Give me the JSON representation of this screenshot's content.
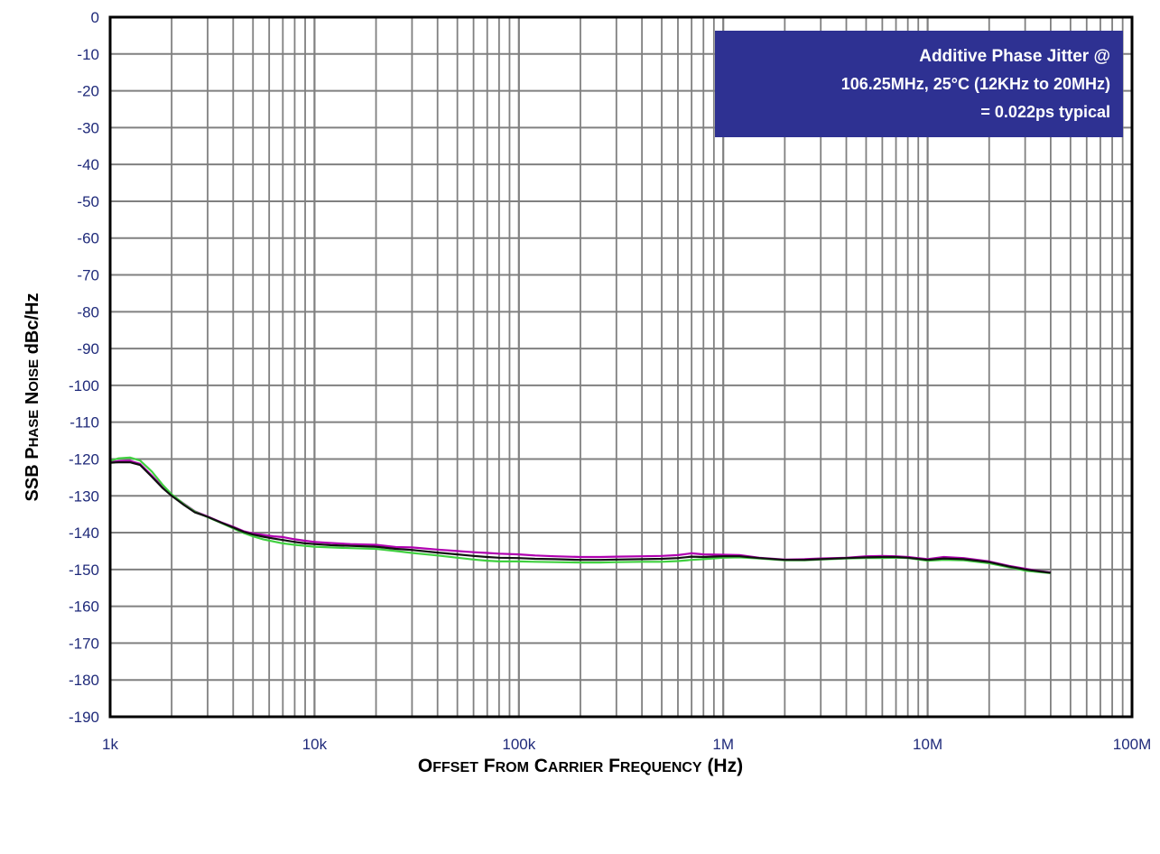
{
  "chart_data": {
    "type": "line",
    "xscale": "log",
    "xlim": [
      1000,
      100000000
    ],
    "ylim": [
      -190,
      0
    ],
    "grid": true,
    "ylabel": "SSB Phase Noise dBc/Hz",
    "xlabel": "Offset From Carrier Frequency (Hz)",
    "ylabel_parts": [
      {
        "text": "SSB P",
        "size": "big"
      },
      {
        "text": "HASE",
        "size": "small"
      },
      {
        "text": " N",
        "size": "big"
      },
      {
        "text": "OISE",
        "size": "small"
      },
      {
        "text": " dBc/Hz",
        "size": "big"
      }
    ],
    "xlabel_parts": [
      {
        "text": "O",
        "size": "big"
      },
      {
        "text": "FFSET",
        "size": "small"
      },
      {
        "text": " F",
        "size": "big"
      },
      {
        "text": "ROM",
        "size": "small"
      },
      {
        "text": " C",
        "size": "big"
      },
      {
        "text": "ARRIER",
        "size": "small"
      },
      {
        "text": " F",
        "size": "big"
      },
      {
        "text": "REQUENCY",
        "size": "small"
      },
      {
        "text": " (Hz)",
        "size": "big"
      }
    ],
    "x_ticks": [
      {
        "value": 1000,
        "label": "1k"
      },
      {
        "value": 10000,
        "label": "10k"
      },
      {
        "value": 100000,
        "label": "100k"
      },
      {
        "value": 1000000,
        "label": "1M"
      },
      {
        "value": 10000000,
        "label": "10M"
      },
      {
        "value": 100000000,
        "label": "100M"
      }
    ],
    "y_ticks": [
      0,
      -10,
      -20,
      -30,
      -40,
      -50,
      -60,
      -70,
      -80,
      -90,
      -100,
      -110,
      -120,
      -130,
      -140,
      -150,
      -160,
      -170,
      -180,
      -190
    ],
    "annotation": {
      "lines": [
        "Additive Phase Jitter @",
        "106.25MHz, 25°C (12KHz to 20MHz)",
        "= 0.022ps typical"
      ],
      "background": "#2e3192",
      "placement": "top-right"
    },
    "colors": {
      "axis": "#000000",
      "grid": "#808080",
      "tick_text": "#1f2a7a"
    },
    "series": [
      {
        "color": "#b000b0",
        "x": [
          1000,
          1100,
          1250,
          1400,
          1600,
          1800,
          2000,
          2300,
          2600,
          3000,
          3500,
          4000,
          4500,
          5000,
          5600,
          6300,
          7000,
          8000,
          9000,
          10000,
          12000,
          15000,
          20000,
          25000,
          30000,
          40000,
          50000,
          60000,
          70000,
          80000,
          100000,
          120000,
          150000,
          200000,
          250000,
          300000,
          400000,
          500000,
          600000,
          700000,
          800000,
          1000000,
          1200000,
          1500000,
          2000000,
          2500000,
          3000000,
          4000000,
          5000000,
          6000000,
          7000000,
          8000000,
          10000000,
          12000000,
          15000000,
          20000000,
          25000000,
          30000000,
          35000000,
          40000000
        ],
        "y": [
          -120.8,
          -120.6,
          -120.5,
          -121.3,
          -124.5,
          -127.5,
          -129.8,
          -132.2,
          -134.2,
          -135.6,
          -137.2,
          -138.4,
          -139.6,
          -140.2,
          -140.6,
          -141.0,
          -141.2,
          -141.8,
          -142.2,
          -142.5,
          -142.8,
          -143.1,
          -143.3,
          -143.9,
          -144.0,
          -144.6,
          -145.0,
          -145.3,
          -145.5,
          -145.7,
          -145.9,
          -146.2,
          -146.4,
          -146.6,
          -146.6,
          -146.5,
          -146.4,
          -146.3,
          -146.1,
          -145.6,
          -145.9,
          -146.0,
          -146.1,
          -146.8,
          -147.3,
          -147.2,
          -147.0,
          -146.8,
          -146.4,
          -146.3,
          -146.4,
          -146.6,
          -147.2,
          -146.6,
          -146.9,
          -147.8,
          -149.0,
          -149.8,
          -150.4,
          -150.8
        ]
      },
      {
        "color": "#40d040",
        "x": [
          1000,
          1100,
          1250,
          1400,
          1600,
          1800,
          2000,
          2300,
          2600,
          3000,
          3500,
          4000,
          4500,
          5000,
          5600,
          6300,
          7000,
          8000,
          9000,
          10000,
          12000,
          15000,
          20000,
          25000,
          30000,
          40000,
          50000,
          60000,
          70000,
          80000,
          100000,
          120000,
          150000,
          200000,
          250000,
          300000,
          400000,
          500000,
          600000,
          700000,
          800000,
          1000000,
          1200000,
          1500000,
          2000000,
          2500000,
          3000000,
          4000000,
          5000000,
          6000000,
          7000000,
          8000000,
          10000000,
          12000000,
          15000000,
          20000000,
          25000000,
          30000000,
          35000000,
          40000000
        ],
        "y": [
          -120.5,
          -119.8,
          -119.6,
          -120.4,
          -123.4,
          -126.9,
          -129.6,
          -132.3,
          -134.3,
          -135.8,
          -137.4,
          -138.8,
          -140.1,
          -141.0,
          -141.8,
          -142.4,
          -142.9,
          -143.3,
          -143.6,
          -143.8,
          -144.0,
          -144.2,
          -144.4,
          -145.0,
          -145.5,
          -146.2,
          -146.8,
          -147.3,
          -147.6,
          -147.8,
          -147.8,
          -147.9,
          -148.0,
          -148.1,
          -148.1,
          -148.0,
          -147.9,
          -147.9,
          -147.7,
          -147.4,
          -147.2,
          -146.8,
          -146.7,
          -147.0,
          -147.5,
          -147.5,
          -147.3,
          -147.0,
          -146.9,
          -146.9,
          -146.8,
          -146.9,
          -147.6,
          -147.4,
          -147.5,
          -148.3,
          -149.4,
          -150.3,
          -150.7,
          -151.0
        ]
      },
      {
        "color": "#111111",
        "x": [
          1000,
          1100,
          1250,
          1400,
          1600,
          1800,
          2000,
          2300,
          2600,
          3000,
          3500,
          4000,
          4500,
          5000,
          5600,
          6300,
          7000,
          8000,
          9000,
          10000,
          12000,
          15000,
          20000,
          25000,
          30000,
          40000,
          50000,
          60000,
          70000,
          80000,
          100000,
          120000,
          150000,
          200000,
          250000,
          300000,
          400000,
          500000,
          600000,
          700000,
          800000,
          1000000,
          1200000,
          1500000,
          2000000,
          2500000,
          3000000,
          4000000,
          5000000,
          6000000,
          7000000,
          8000000,
          10000000,
          12000000,
          15000000,
          20000000,
          25000000,
          30000000,
          35000000,
          40000000
        ],
        "y": [
          -121.0,
          -120.9,
          -120.9,
          -121.6,
          -124.8,
          -127.8,
          -130.0,
          -132.5,
          -134.5,
          -135.7,
          -137.3,
          -138.6,
          -139.8,
          -140.5,
          -141.1,
          -141.6,
          -142.0,
          -142.5,
          -142.9,
          -143.1,
          -143.4,
          -143.6,
          -143.8,
          -144.4,
          -144.7,
          -145.4,
          -145.9,
          -146.3,
          -146.6,
          -146.8,
          -146.9,
          -147.1,
          -147.2,
          -147.4,
          -147.4,
          -147.3,
          -147.2,
          -147.1,
          -146.9,
          -146.5,
          -146.6,
          -146.4,
          -146.4,
          -146.9,
          -147.4,
          -147.4,
          -147.2,
          -146.9,
          -146.7,
          -146.6,
          -146.6,
          -146.8,
          -147.4,
          -147.0,
          -147.2,
          -148.0,
          -149.2,
          -150.0,
          -150.5,
          -150.9
        ]
      }
    ]
  }
}
